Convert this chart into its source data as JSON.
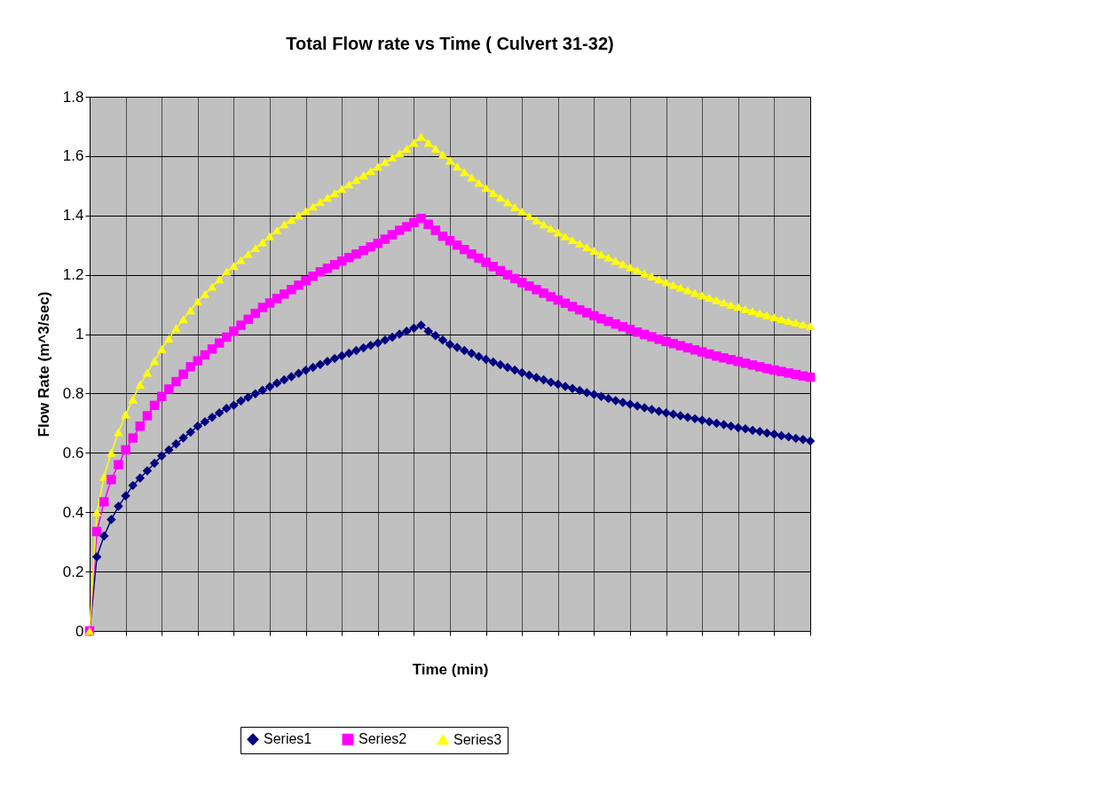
{
  "chart_data": {
    "type": "line",
    "title": "Total Flow rate vs Time ( Culvert 31-32)",
    "xlabel": "Time (min)",
    "ylabel": "Flow Rate (m^3/sec)",
    "categories": [
      null,
      null,
      null,
      null,
      null,
      null,
      null,
      null,
      null,
      null,
      null,
      null,
      null,
      null,
      null,
      null,
      null,
      null,
      null,
      null,
      null,
      null,
      null,
      null,
      null,
      null,
      null,
      null,
      null,
      null,
      null,
      null,
      null,
      null,
      null,
      null,
      null,
      null,
      null,
      null,
      null,
      null,
      null,
      null,
      null,
      null,
      null,
      null,
      null,
      null,
      null,
      null,
      null,
      null,
      null,
      null,
      null,
      null,
      null,
      null,
      null,
      null,
      null,
      null,
      null,
      null,
      null,
      null,
      null,
      null,
      null,
      null,
      null,
      null,
      null,
      null,
      null,
      null,
      null,
      null,
      null,
      null,
      null,
      null,
      null,
      null,
      null,
      null,
      null,
      null,
      null,
      null,
      null,
      null,
      null,
      null,
      null,
      null,
      null,
      null,
      null
    ],
    "series": [
      {
        "name": "Series1",
        "color": "#000080",
        "marker": "diamond",
        "values": [
          0,
          0.25,
          0.32,
          0.375,
          0.42,
          0.455,
          0.49,
          0.515,
          0.54,
          0.565,
          0.59,
          0.61,
          0.63,
          0.65,
          0.67,
          0.69,
          0.705,
          0.72,
          0.735,
          0.75,
          0.76,
          0.775,
          0.787,
          0.799,
          0.811,
          0.823,
          0.835,
          0.846,
          0.857,
          0.868,
          0.878,
          0.888,
          0.898,
          0.908,
          0.918,
          0.927,
          0.936,
          0.945,
          0.954,
          0.962,
          0.97,
          0.98,
          0.99,
          1.0,
          1.01,
          1.02,
          1.03,
          1.01,
          0.995,
          0.98,
          0.965,
          0.955,
          0.945,
          0.935,
          0.925,
          0.915,
          0.906,
          0.897,
          0.888,
          0.879,
          0.87,
          0.862,
          0.854,
          0.846,
          0.838,
          0.831,
          0.824,
          0.817,
          0.81,
          0.803,
          0.797,
          0.79,
          0.783,
          0.776,
          0.77,
          0.764,
          0.758,
          0.752,
          0.746,
          0.74,
          0.735,
          0.73,
          0.725,
          0.72,
          0.715,
          0.71,
          0.705,
          0.7,
          0.695,
          0.69,
          0.685,
          0.681,
          0.676,
          0.672,
          0.667,
          0.663,
          0.658,
          0.654,
          0.649,
          0.645,
          0.64
        ]
      },
      {
        "name": "Series2",
        "color": "#ff00ff",
        "marker": "square",
        "values": [
          0,
          0.335,
          0.435,
          0.51,
          0.56,
          0.61,
          0.65,
          0.69,
          0.725,
          0.76,
          0.79,
          0.815,
          0.84,
          0.865,
          0.89,
          0.91,
          0.93,
          0.95,
          0.97,
          0.99,
          1.01,
          1.03,
          1.05,
          1.07,
          1.09,
          1.105,
          1.12,
          1.135,
          1.15,
          1.165,
          1.18,
          1.195,
          1.21,
          1.222,
          1.234,
          1.246,
          1.258,
          1.27,
          1.282,
          1.294,
          1.306,
          1.32,
          1.335,
          1.35,
          1.362,
          1.376,
          1.39,
          1.37,
          1.35,
          1.33,
          1.315,
          1.3,
          1.285,
          1.27,
          1.256,
          1.242,
          1.228,
          1.214,
          1.2,
          1.187,
          1.174,
          1.162,
          1.15,
          1.138,
          1.126,
          1.115,
          1.104,
          1.093,
          1.082,
          1.072,
          1.062,
          1.052,
          1.043,
          1.034,
          1.025,
          1.016,
          1.007,
          0.999,
          0.991,
          0.983,
          0.975,
          0.968,
          0.961,
          0.954,
          0.947,
          0.94,
          0.933,
          0.926,
          0.92,
          0.914,
          0.908,
          0.902,
          0.896,
          0.89,
          0.884,
          0.879,
          0.874,
          0.869,
          0.864,
          0.859,
          0.855
        ]
      },
      {
        "name": "Series3",
        "color": "#ffff00",
        "marker": "triangle",
        "values": [
          0,
          0.4,
          0.52,
          0.6,
          0.67,
          0.73,
          0.78,
          0.83,
          0.87,
          0.91,
          0.95,
          0.985,
          1.02,
          1.05,
          1.08,
          1.11,
          1.135,
          1.16,
          1.185,
          1.21,
          1.23,
          1.25,
          1.27,
          1.29,
          1.31,
          1.33,
          1.35,
          1.37,
          1.385,
          1.4,
          1.415,
          1.43,
          1.445,
          1.46,
          1.475,
          1.49,
          1.505,
          1.52,
          1.535,
          1.55,
          1.565,
          1.58,
          1.595,
          1.61,
          1.625,
          1.645,
          1.665,
          1.645,
          1.625,
          1.605,
          1.585,
          1.565,
          1.546,
          1.528,
          1.51,
          1.493,
          1.476,
          1.46,
          1.444,
          1.428,
          1.413,
          1.398,
          1.384,
          1.37,
          1.356,
          1.343,
          1.33,
          1.317,
          1.305,
          1.293,
          1.281,
          1.269,
          1.258,
          1.247,
          1.236,
          1.225,
          1.215,
          1.205,
          1.195,
          1.185,
          1.175,
          1.166,
          1.157,
          1.148,
          1.139,
          1.131,
          1.123,
          1.115,
          1.107,
          1.099,
          1.092,
          1.085,
          1.078,
          1.071,
          1.064,
          1.057,
          1.051,
          1.045,
          1.039,
          1.033,
          1.027
        ]
      }
    ],
    "ylim": [
      0,
      1.8
    ],
    "yticks": [
      0,
      0.2,
      0.4,
      0.6,
      0.8,
      1,
      1.2,
      1.4,
      1.6,
      1.8
    ],
    "grid": true,
    "legend": "bottom",
    "tick_labels": "y",
    "line_style": "solid"
  }
}
